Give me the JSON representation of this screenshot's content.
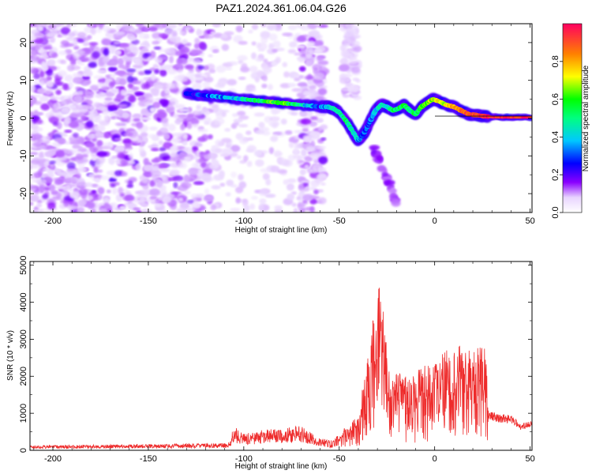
{
  "title": "PAZ1.2024.361.06.04.G26",
  "chart_data": [
    {
      "type": "heatmap",
      "xlabel": "Height of straight line (km)",
      "ylabel": "Frequency (Hz)",
      "xlim": [
        -212,
        51
      ],
      "ylim": [
        -25,
        25
      ],
      "x_ticks": [
        -200,
        -150,
        -100,
        -50,
        0,
        50
      ],
      "x_tick_labels": [
        "-200",
        "-150",
        "-100",
        "-50",
        "0",
        "50"
      ],
      "y_ticks": [
        -20,
        -10,
        0,
        10,
        20
      ],
      "y_tick_labels": [
        "-20",
        "-10",
        "0",
        "10",
        "20"
      ],
      "colorbar": {
        "label": "Normalized spectral amplitude",
        "range": [
          0,
          1
        ],
        "ticks": [
          0.0,
          0.2,
          0.4,
          0.6,
          0.8
        ],
        "tick_labels": [
          "0.0",
          "0.2",
          "0.4",
          "0.6",
          "0.8"
        ]
      },
      "ridge": {
        "x": [
          -130,
          -120,
          -110,
          -100,
          -90,
          -80,
          -70,
          -60,
          -56,
          -53,
          -50,
          -46,
          -43,
          -40,
          -37,
          -34,
          -31,
          -28,
          -25,
          -22,
          -19,
          -16,
          -13,
          -10,
          -7,
          -4,
          -1,
          2,
          6,
          10,
          14,
          18,
          22,
          26,
          30,
          35,
          40,
          45,
          51
        ],
        "y": [
          6.5,
          6.0,
          5.5,
          5.0,
          4.5,
          4.0,
          3.5,
          3.0,
          3.0,
          2.5,
          1.5,
          -1.0,
          -3.5,
          -6.0,
          -4.0,
          -1.0,
          2.0,
          3.5,
          3.0,
          2.0,
          2.5,
          3.5,
          2.0,
          1.0,
          3.0,
          4.0,
          5.0,
          4.5,
          3.5,
          3.0,
          2.0,
          1.0,
          0.8,
          0.5,
          0.3,
          0.2,
          0.2,
          0.2,
          0.2
        ],
        "amplitude": [
          0.2,
          0.3,
          0.35,
          0.45,
          0.55,
          0.65,
          0.45,
          0.3,
          0.4,
          0.45,
          0.5,
          0.5,
          0.45,
          0.35,
          0.3,
          0.3,
          0.4,
          0.45,
          0.45,
          0.5,
          0.55,
          0.55,
          0.5,
          0.55,
          0.6,
          0.65,
          0.7,
          0.75,
          0.7,
          0.8,
          0.85,
          0.9,
          0.9,
          0.95,
          0.95,
          0.95,
          0.95,
          0.95,
          0.95
        ]
      }
    },
    {
      "type": "line",
      "xlabel": "Height of straight line (km)",
      "ylabel": "SNR (10 * v/v)",
      "xlim": [
        -212,
        51
      ],
      "ylim": [
        0,
        5100
      ],
      "x_ticks": [
        -200,
        -150,
        -100,
        -50,
        0,
        50
      ],
      "x_tick_labels": [
        "-200",
        "-150",
        "-100",
        "-50",
        "0",
        "50"
      ],
      "y_ticks": [
        0,
        1000,
        2000,
        3000,
        4000,
        5000
      ],
      "y_tick_labels": [
        "0",
        "1000",
        "2000",
        "3000",
        "4000",
        "5000"
      ],
      "color": "#ee2b2b",
      "envelope": {
        "x": [
          -212,
          -150,
          -108,
          -105,
          -100,
          -90,
          -80,
          -70,
          -60,
          -55,
          -50,
          -45,
          -40,
          -35,
          -33,
          -31,
          -29,
          -27,
          -25,
          -23,
          -20,
          -15,
          -10,
          -5,
          0,
          5,
          10,
          15,
          20,
          24,
          27,
          28,
          32,
          40,
          45,
          51
        ],
        "y": [
          120,
          150,
          180,
          600,
          400,
          500,
          550,
          600,
          300,
          250,
          400,
          700,
          900,
          2500,
          4200,
          2800,
          5100,
          3600,
          2600,
          1800,
          2000,
          1900,
          2100,
          2400,
          2200,
          2600,
          2700,
          2700,
          2600,
          2700,
          2600,
          1050,
          950,
          900,
          700,
          750
        ]
      }
    }
  ]
}
